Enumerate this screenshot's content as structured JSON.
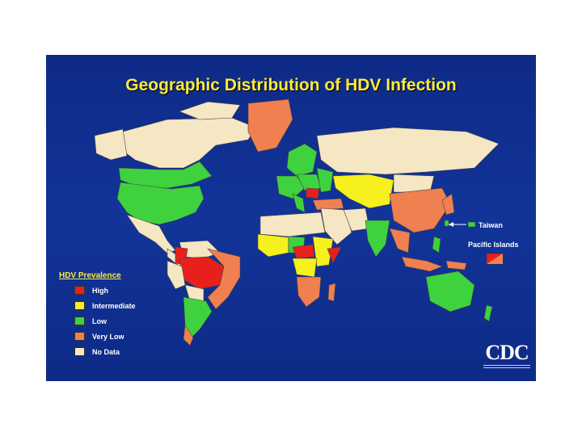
{
  "title": "Geographic Distribution of HDV Infection",
  "callouts": {
    "taiwan": "Taiwan",
    "pacific": "Pacific Islands"
  },
  "legend": {
    "title": "HDV Prevalence",
    "items": [
      {
        "label": "High",
        "color": "#e8201c"
      },
      {
        "label": "Intermediate",
        "color": "#f5f01e"
      },
      {
        "label": "Low",
        "color": "#3ed23e"
      },
      {
        "label": "Very Low",
        "color": "#f08050"
      },
      {
        "label": "No Data",
        "color": "#f5e6c4"
      }
    ]
  },
  "logo": "CDC",
  "colors": {
    "ocean": "#123499",
    "title": "#ffeb3b",
    "border": "#444444"
  }
}
